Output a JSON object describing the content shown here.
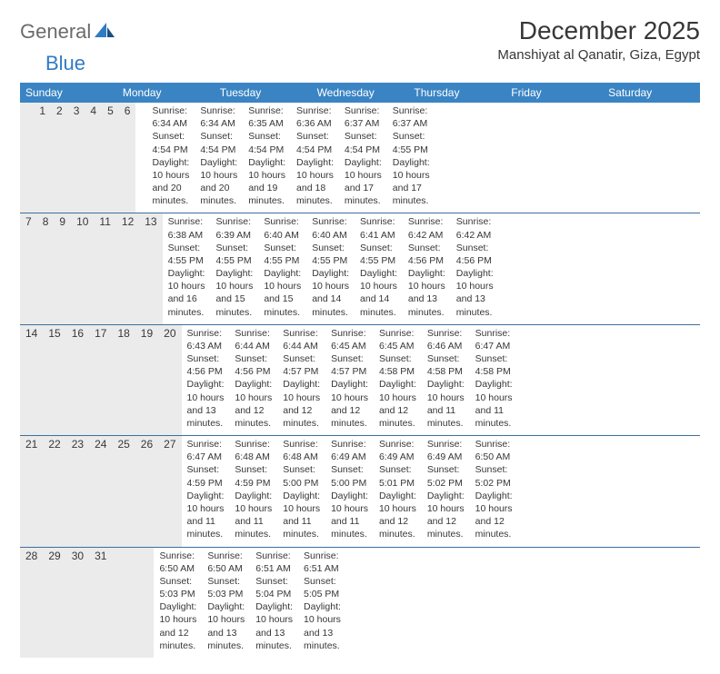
{
  "brand": {
    "part1": "General",
    "part2": "Blue"
  },
  "title": "December 2025",
  "location": "Manshiyat al Qanatir, Giza, Egypt",
  "colors": {
    "header_bar": "#3b84c4",
    "daynum_bg": "#ebebeb",
    "week_divider": "#3b6f9e",
    "text": "#373737",
    "logo_gray": "#6b6b6b",
    "logo_blue": "#2f7bc4",
    "background": "#ffffff"
  },
  "weekdays": [
    "Sunday",
    "Monday",
    "Tuesday",
    "Wednesday",
    "Thursday",
    "Friday",
    "Saturday"
  ],
  "weeks": [
    [
      {
        "n": "",
        "sunrise": "",
        "sunset": "",
        "daylight": ""
      },
      {
        "n": "1",
        "sunrise": "Sunrise: 6:34 AM",
        "sunset": "Sunset: 4:54 PM",
        "daylight": "Daylight: 10 hours and 20 minutes."
      },
      {
        "n": "2",
        "sunrise": "Sunrise: 6:34 AM",
        "sunset": "Sunset: 4:54 PM",
        "daylight": "Daylight: 10 hours and 20 minutes."
      },
      {
        "n": "3",
        "sunrise": "Sunrise: 6:35 AM",
        "sunset": "Sunset: 4:54 PM",
        "daylight": "Daylight: 10 hours and 19 minutes."
      },
      {
        "n": "4",
        "sunrise": "Sunrise: 6:36 AM",
        "sunset": "Sunset: 4:54 PM",
        "daylight": "Daylight: 10 hours and 18 minutes."
      },
      {
        "n": "5",
        "sunrise": "Sunrise: 6:37 AM",
        "sunset": "Sunset: 4:54 PM",
        "daylight": "Daylight: 10 hours and 17 minutes."
      },
      {
        "n": "6",
        "sunrise": "Sunrise: 6:37 AM",
        "sunset": "Sunset: 4:55 PM",
        "daylight": "Daylight: 10 hours and 17 minutes."
      }
    ],
    [
      {
        "n": "7",
        "sunrise": "Sunrise: 6:38 AM",
        "sunset": "Sunset: 4:55 PM",
        "daylight": "Daylight: 10 hours and 16 minutes."
      },
      {
        "n": "8",
        "sunrise": "Sunrise: 6:39 AM",
        "sunset": "Sunset: 4:55 PM",
        "daylight": "Daylight: 10 hours and 15 minutes."
      },
      {
        "n": "9",
        "sunrise": "Sunrise: 6:40 AM",
        "sunset": "Sunset: 4:55 PM",
        "daylight": "Daylight: 10 hours and 15 minutes."
      },
      {
        "n": "10",
        "sunrise": "Sunrise: 6:40 AM",
        "sunset": "Sunset: 4:55 PM",
        "daylight": "Daylight: 10 hours and 14 minutes."
      },
      {
        "n": "11",
        "sunrise": "Sunrise: 6:41 AM",
        "sunset": "Sunset: 4:55 PM",
        "daylight": "Daylight: 10 hours and 14 minutes."
      },
      {
        "n": "12",
        "sunrise": "Sunrise: 6:42 AM",
        "sunset": "Sunset: 4:56 PM",
        "daylight": "Daylight: 10 hours and 13 minutes."
      },
      {
        "n": "13",
        "sunrise": "Sunrise: 6:42 AM",
        "sunset": "Sunset: 4:56 PM",
        "daylight": "Daylight: 10 hours and 13 minutes."
      }
    ],
    [
      {
        "n": "14",
        "sunrise": "Sunrise: 6:43 AM",
        "sunset": "Sunset: 4:56 PM",
        "daylight": "Daylight: 10 hours and 13 minutes."
      },
      {
        "n": "15",
        "sunrise": "Sunrise: 6:44 AM",
        "sunset": "Sunset: 4:56 PM",
        "daylight": "Daylight: 10 hours and 12 minutes."
      },
      {
        "n": "16",
        "sunrise": "Sunrise: 6:44 AM",
        "sunset": "Sunset: 4:57 PM",
        "daylight": "Daylight: 10 hours and 12 minutes."
      },
      {
        "n": "17",
        "sunrise": "Sunrise: 6:45 AM",
        "sunset": "Sunset: 4:57 PM",
        "daylight": "Daylight: 10 hours and 12 minutes."
      },
      {
        "n": "18",
        "sunrise": "Sunrise: 6:45 AM",
        "sunset": "Sunset: 4:58 PM",
        "daylight": "Daylight: 10 hours and 12 minutes."
      },
      {
        "n": "19",
        "sunrise": "Sunrise: 6:46 AM",
        "sunset": "Sunset: 4:58 PM",
        "daylight": "Daylight: 10 hours and 11 minutes."
      },
      {
        "n": "20",
        "sunrise": "Sunrise: 6:47 AM",
        "sunset": "Sunset: 4:58 PM",
        "daylight": "Daylight: 10 hours and 11 minutes."
      }
    ],
    [
      {
        "n": "21",
        "sunrise": "Sunrise: 6:47 AM",
        "sunset": "Sunset: 4:59 PM",
        "daylight": "Daylight: 10 hours and 11 minutes."
      },
      {
        "n": "22",
        "sunrise": "Sunrise: 6:48 AM",
        "sunset": "Sunset: 4:59 PM",
        "daylight": "Daylight: 10 hours and 11 minutes."
      },
      {
        "n": "23",
        "sunrise": "Sunrise: 6:48 AM",
        "sunset": "Sunset: 5:00 PM",
        "daylight": "Daylight: 10 hours and 11 minutes."
      },
      {
        "n": "24",
        "sunrise": "Sunrise: 6:49 AM",
        "sunset": "Sunset: 5:00 PM",
        "daylight": "Daylight: 10 hours and 11 minutes."
      },
      {
        "n": "25",
        "sunrise": "Sunrise: 6:49 AM",
        "sunset": "Sunset: 5:01 PM",
        "daylight": "Daylight: 10 hours and 12 minutes."
      },
      {
        "n": "26",
        "sunrise": "Sunrise: 6:49 AM",
        "sunset": "Sunset: 5:02 PM",
        "daylight": "Daylight: 10 hours and 12 minutes."
      },
      {
        "n": "27",
        "sunrise": "Sunrise: 6:50 AM",
        "sunset": "Sunset: 5:02 PM",
        "daylight": "Daylight: 10 hours and 12 minutes."
      }
    ],
    [
      {
        "n": "28",
        "sunrise": "Sunrise: 6:50 AM",
        "sunset": "Sunset: 5:03 PM",
        "daylight": "Daylight: 10 hours and 12 minutes."
      },
      {
        "n": "29",
        "sunrise": "Sunrise: 6:50 AM",
        "sunset": "Sunset: 5:03 PM",
        "daylight": "Daylight: 10 hours and 13 minutes."
      },
      {
        "n": "30",
        "sunrise": "Sunrise: 6:51 AM",
        "sunset": "Sunset: 5:04 PM",
        "daylight": "Daylight: 10 hours and 13 minutes."
      },
      {
        "n": "31",
        "sunrise": "Sunrise: 6:51 AM",
        "sunset": "Sunset: 5:05 PM",
        "daylight": "Daylight: 10 hours and 13 minutes."
      },
      {
        "n": "",
        "sunrise": "",
        "sunset": "",
        "daylight": ""
      },
      {
        "n": "",
        "sunrise": "",
        "sunset": "",
        "daylight": ""
      },
      {
        "n": "",
        "sunrise": "",
        "sunset": "",
        "daylight": ""
      }
    ]
  ]
}
